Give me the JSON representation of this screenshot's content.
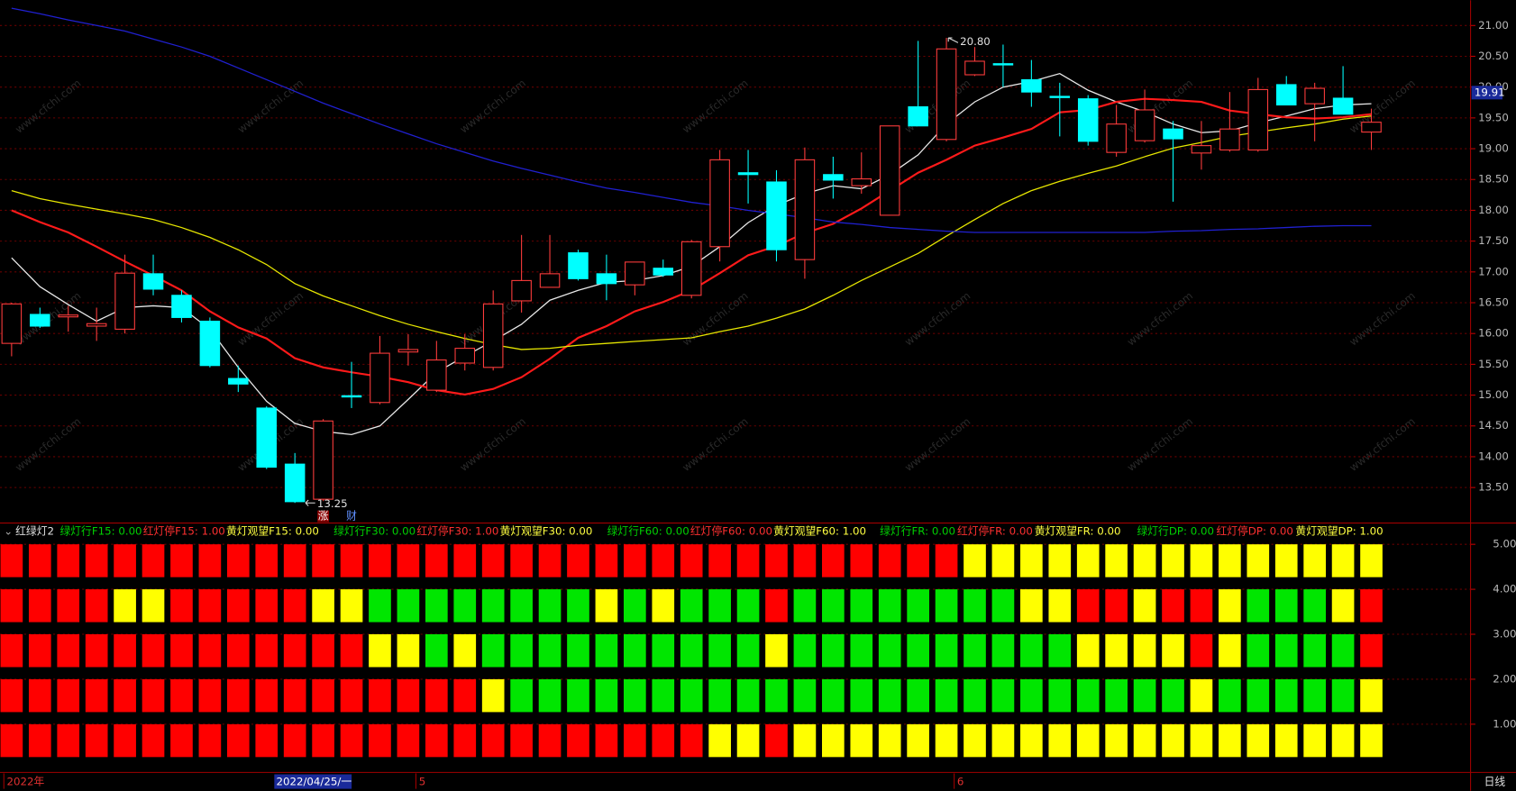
{
  "watermark": "www.cfchi.com",
  "period": "日线",
  "chart_data": [
    {
      "type": "candlestick",
      "categories": [
        "2022年",
        null,
        null,
        null,
        null,
        null,
        null,
        null,
        null,
        "2022/04/25/一",
        null,
        null,
        null,
        null,
        "5",
        null,
        null,
        null,
        null,
        null,
        null,
        null,
        null,
        null,
        null,
        null,
        null,
        null,
        null,
        null,
        null,
        null,
        null,
        "6",
        null,
        null,
        null,
        null,
        null,
        null,
        null,
        null,
        null,
        null,
        null,
        null,
        null,
        null,
        null
      ],
      "cursor_index": 9,
      "open": [
        15.84,
        16.31,
        16.27,
        16.12,
        16.07,
        16.97,
        16.62,
        16.2,
        15.27,
        14.79,
        13.88,
        13.31,
        14.99,
        14.88,
        15.7,
        15.08,
        15.52,
        15.45,
        16.53,
        16.75,
        17.31,
        16.97,
        16.79,
        17.06,
        16.62,
        17.41,
        18.61,
        18.46,
        17.2,
        18.58,
        18.4,
        17.92,
        19.68,
        19.15,
        20.2,
        20.38,
        20.12,
        19.85,
        19.81,
        18.94,
        19.13,
        19.32,
        18.93,
        18.98,
        18.98,
        20.04,
        19.73,
        19.82,
        19.27
      ],
      "high": [
        16.5,
        16.42,
        16.45,
        16.42,
        17.28,
        17.28,
        16.7,
        16.26,
        15.48,
        14.82,
        14.06,
        14.61,
        15.54,
        15.96,
        15.99,
        15.88,
        15.99,
        16.7,
        17.6,
        17.6,
        17.36,
        17.28,
        17.16,
        17.2,
        17.52,
        18.98,
        18.98,
        18.65,
        19.02,
        18.87,
        18.94,
        19.37,
        20.75,
        20.8,
        20.65,
        20.69,
        20.44,
        20.07,
        19.87,
        19.71,
        19.96,
        19.45,
        19.45,
        19.92,
        20.15,
        20.18,
        20.07,
        20.34,
        19.65
      ],
      "low": [
        15.63,
        16.09,
        16.03,
        15.88,
        16.0,
        16.62,
        16.18,
        15.45,
        15.05,
        13.8,
        13.25,
        13.28,
        14.79,
        14.85,
        15.48,
        15.05,
        15.4,
        15.4,
        16.34,
        16.75,
        16.86,
        16.54,
        16.62,
        16.92,
        16.57,
        17.17,
        18.11,
        17.17,
        16.89,
        18.19,
        18.27,
        17.92,
        19.37,
        19.12,
        20.18,
        20.0,
        19.68,
        19.2,
        19.05,
        18.87,
        19.1,
        18.14,
        18.66,
        18.95,
        18.95,
        19.71,
        19.12,
        19.56,
        18.98
      ],
      "close": [
        16.48,
        16.12,
        16.3,
        16.16,
        16.98,
        16.72,
        16.26,
        15.48,
        15.18,
        13.83,
        13.27,
        14.58,
        14.97,
        15.68,
        15.74,
        15.57,
        15.76,
        16.48,
        16.86,
        16.97,
        16.89,
        16.81,
        17.16,
        16.95,
        17.49,
        18.82,
        18.58,
        17.36,
        18.82,
        18.49,
        18.51,
        19.37,
        19.37,
        20.62,
        20.42,
        20.36,
        19.92,
        19.83,
        19.12,
        19.4,
        19.63,
        19.16,
        19.05,
        19.32,
        19.96,
        19.71,
        19.98,
        19.56,
        19.43
      ],
      "up_color": "#ff3c3c",
      "down_color": "#00ffff",
      "series": [
        {
          "color": "#e8e8e8",
          "values": [
            17.23,
            16.76,
            16.47,
            16.2,
            16.42,
            16.45,
            16.42,
            16.07,
            15.45,
            14.9,
            14.54,
            14.41,
            14.36,
            14.5,
            14.93,
            15.37,
            15.63,
            15.88,
            16.15,
            16.54,
            16.7,
            16.83,
            16.86,
            16.94,
            17.09,
            17.41,
            17.8,
            18.08,
            18.27,
            18.4,
            18.35,
            18.58,
            18.9,
            19.4,
            19.76,
            20.0,
            20.09,
            20.22,
            19.95,
            19.76,
            19.6,
            19.4,
            19.26,
            19.29,
            19.42,
            19.53,
            19.65,
            19.71,
            19.73
          ]
        },
        {
          "color": "#ff1a1a",
          "values": [
            18.0,
            17.81,
            17.64,
            17.41,
            17.17,
            16.94,
            16.7,
            16.36,
            16.1,
            15.92,
            15.6,
            15.45,
            15.37,
            15.3,
            15.21,
            15.08,
            15.01,
            15.1,
            15.29,
            15.59,
            15.93,
            16.12,
            16.36,
            16.51,
            16.7,
            16.98,
            17.27,
            17.42,
            17.63,
            17.78,
            18.03,
            18.32,
            18.61,
            18.82,
            19.05,
            19.18,
            19.32,
            19.59,
            19.63,
            19.76,
            19.81,
            19.79,
            19.76,
            19.62,
            19.56,
            19.51,
            19.49,
            19.51,
            19.56
          ]
        },
        {
          "color": "#e6e600",
          "values": [
            18.32,
            18.19,
            18.1,
            18.02,
            17.94,
            17.85,
            17.72,
            17.56,
            17.36,
            17.12,
            16.81,
            16.61,
            16.45,
            16.29,
            16.15,
            16.03,
            15.92,
            15.82,
            15.74,
            15.76,
            15.81,
            15.84,
            15.87,
            15.9,
            15.93,
            16.03,
            16.12,
            16.25,
            16.4,
            16.62,
            16.86,
            17.08,
            17.3,
            17.58,
            17.85,
            18.11,
            18.32,
            18.47,
            18.6,
            18.72,
            18.87,
            19.01,
            19.1,
            19.2,
            19.27,
            19.34,
            19.4,
            19.48,
            19.53
          ]
        },
        {
          "color": "#2020d0",
          "values": [
            21.28,
            21.19,
            21.09,
            21.0,
            20.91,
            20.78,
            20.65,
            20.5,
            20.31,
            20.12,
            19.93,
            19.74,
            19.57,
            19.4,
            19.24,
            19.08,
            18.94,
            18.8,
            18.68,
            18.57,
            18.46,
            18.36,
            18.29,
            18.21,
            18.13,
            18.07,
            18.0,
            17.94,
            17.88,
            17.81,
            17.77,
            17.72,
            17.69,
            17.66,
            17.64,
            17.64,
            17.64,
            17.64,
            17.64,
            17.64,
            17.64,
            17.66,
            17.67,
            17.69,
            17.7,
            17.72,
            17.74,
            17.75,
            17.75
          ]
        }
      ],
      "annotations": [
        "20.80",
        "13.25"
      ],
      "markers": [
        "涨",
        "财"
      ],
      "last_price": 19.91,
      "ylim": [
        12.97,
        21.41
      ],
      "yticks": [
        {
          "value": 13.5,
          "label": "13.50"
        },
        {
          "value": 14,
          "label": "14.00"
        },
        {
          "value": 14.5,
          "label": "14.50"
        },
        {
          "value": 15,
          "label": "15.00"
        },
        {
          "value": 15.5,
          "label": "15.50"
        },
        {
          "value": 16,
          "label": "16.00"
        },
        {
          "value": 16.5,
          "label": "16.50"
        },
        {
          "value": 17,
          "label": "17.00"
        },
        {
          "value": 17.5,
          "label": "17.50"
        },
        {
          "value": 18,
          "label": "18.00"
        },
        {
          "value": 18.5,
          "label": "18.50"
        },
        {
          "value": 19,
          "label": "19.00"
        },
        {
          "value": 19.5,
          "label": "19.50"
        },
        {
          "value": 20,
          "label": "20.00"
        },
        {
          "value": 20.5,
          "label": "20.50"
        },
        {
          "value": 21,
          "label": "21.00"
        }
      ],
      "grid": true
    },
    {
      "type": "signals",
      "title": "红绿灯2",
      "legend": [
        {
          "text": "绿灯行F15: 0.00",
          "color": "#00d000"
        },
        {
          "text": "红灯停F15: 1.00",
          "color": "#ff3030"
        },
        {
          "text": "黄灯观望F15: 0.00",
          "color": "#ffff40"
        },
        {
          "text": "绿灯行F30: 0.00",
          "color": "#00d000"
        },
        {
          "text": "红灯停F30: 1.00",
          "color": "#ff3030"
        },
        {
          "text": "黄灯观望F30: 0.00",
          "color": "#ffff40"
        },
        {
          "text": "绿灯行F60: 0.00",
          "color": "#00d000"
        },
        {
          "text": "红灯停F60: 0.00",
          "color": "#ff3030"
        },
        {
          "text": "黄灯观望F60: 1.00",
          "color": "#ffff40"
        },
        {
          "text": "绿灯行FR: 0.00",
          "color": "#00d000"
        },
        {
          "text": "红灯停FR: 0.00",
          "color": "#ff3030"
        },
        {
          "text": "黄灯观望FR: 0.00",
          "color": "#ffff40"
        },
        {
          "text": "绿灯行DP: 0.00",
          "color": "#00d000"
        },
        {
          "text": "红灯停DP: 0.00",
          "color": "#ff3030"
        },
        {
          "text": "黄灯观望DP: 1.00",
          "color": "#ffff40"
        }
      ],
      "rows": [
        {
          "level": 5,
          "colors": [
            "#ff0000",
            "#ff0000",
            "#ff0000",
            "#ff0000",
            "#ff0000",
            "#ff0000",
            "#ff0000",
            "#ff0000",
            "#ff0000",
            "#ff0000",
            "#ff0000",
            "#ff0000",
            "#ff0000",
            "#ff0000",
            "#ff0000",
            "#ff0000",
            "#ff0000",
            "#ff0000",
            "#ff0000",
            "#ff0000",
            "#ff0000",
            "#ff0000",
            "#ff0000",
            "#ff0000",
            "#ff0000",
            "#ff0000",
            "#ff0000",
            "#ff0000",
            "#ff0000",
            "#ff0000",
            "#ff0000",
            "#ff0000",
            "#ff0000",
            "#ff0000",
            "#ffff00",
            "#ffff00",
            "#ffff00",
            "#ffff00",
            "#ffff00",
            "#ffff00",
            "#ffff00",
            "#ffff00",
            "#ffff00",
            "#ffff00",
            "#ffff00",
            "#ffff00",
            "#ffff00",
            "#ffff00",
            "#ffff00"
          ]
        },
        {
          "level": 4,
          "colors": [
            "#ff0000",
            "#ff0000",
            "#ff0000",
            "#ff0000",
            "#ffff00",
            "#ffff00",
            "#ff0000",
            "#ff0000",
            "#ff0000",
            "#ff0000",
            "#ff0000",
            "#ffff00",
            "#ffff00",
            "#00e600",
            "#00e600",
            "#00e600",
            "#00e600",
            "#00e600",
            "#00e600",
            "#00e600",
            "#00e600",
            "#ffff00",
            "#00e600",
            "#ffff00",
            "#00e600",
            "#00e600",
            "#00e600",
            "#ff0000",
            "#00e600",
            "#00e600",
            "#00e600",
            "#00e600",
            "#00e600",
            "#00e600",
            "#00e600",
            "#00e600",
            "#ffff00",
            "#ffff00",
            "#ff0000",
            "#ff0000",
            "#ffff00",
            "#ff0000",
            "#ff0000",
            "#ffff00",
            "#00e600",
            "#00e600",
            "#00e600",
            "#ffff00",
            "#ff0000"
          ]
        },
        {
          "level": 3,
          "colors": [
            "#ff0000",
            "#ff0000",
            "#ff0000",
            "#ff0000",
            "#ff0000",
            "#ff0000",
            "#ff0000",
            "#ff0000",
            "#ff0000",
            "#ff0000",
            "#ff0000",
            "#ff0000",
            "#ff0000",
            "#ffff00",
            "#ffff00",
            "#00e600",
            "#ffff00",
            "#00e600",
            "#00e600",
            "#00e600",
            "#00e600",
            "#00e600",
            "#00e600",
            "#00e600",
            "#00e600",
            "#00e600",
            "#00e600",
            "#ffff00",
            "#00e600",
            "#00e600",
            "#00e600",
            "#00e600",
            "#00e600",
            "#00e600",
            "#00e600",
            "#00e600",
            "#00e600",
            "#00e600",
            "#ffff00",
            "#ffff00",
            "#ffff00",
            "#ffff00",
            "#ff0000",
            "#ffff00",
            "#00e600",
            "#00e600",
            "#00e600",
            "#00e600",
            "#ff0000"
          ]
        },
        {
          "level": 2,
          "colors": [
            "#ff0000",
            "#ff0000",
            "#ff0000",
            "#ff0000",
            "#ff0000",
            "#ff0000",
            "#ff0000",
            "#ff0000",
            "#ff0000",
            "#ff0000",
            "#ff0000",
            "#ff0000",
            "#ff0000",
            "#ff0000",
            "#ff0000",
            "#ff0000",
            "#ff0000",
            "#ffff00",
            "#00e600",
            "#00e600",
            "#00e600",
            "#00e600",
            "#00e600",
            "#00e600",
            "#00e600",
            "#00e600",
            "#00e600",
            "#00e600",
            "#00e600",
            "#00e600",
            "#00e600",
            "#00e600",
            "#00e600",
            "#00e600",
            "#00e600",
            "#00e600",
            "#00e600",
            "#00e600",
            "#00e600",
            "#00e600",
            "#00e600",
            "#00e600",
            "#ffff00",
            "#00e600",
            "#00e600",
            "#00e600",
            "#00e600",
            "#00e600",
            "#ffff00"
          ]
        },
        {
          "level": 1,
          "colors": [
            "#ff0000",
            "#ff0000",
            "#ff0000",
            "#ff0000",
            "#ff0000",
            "#ff0000",
            "#ff0000",
            "#ff0000",
            "#ff0000",
            "#ff0000",
            "#ff0000",
            "#ff0000",
            "#ff0000",
            "#ff0000",
            "#ff0000",
            "#ff0000",
            "#ff0000",
            "#ff0000",
            "#ff0000",
            "#ff0000",
            "#ff0000",
            "#ff0000",
            "#ff0000",
            "#ff0000",
            "#ff0000",
            "#ffff00",
            "#ffff00",
            "#ff0000",
            "#ffff00",
            "#ffff00",
            "#ffff00",
            "#ffff00",
            "#ffff00",
            "#ffff00",
            "#ffff00",
            "#ffff00",
            "#ffff00",
            "#ffff00",
            "#ffff00",
            "#ffff00",
            "#ffff00",
            "#ffff00",
            "#ffff00",
            "#ffff00",
            "#ffff00",
            "#ffff00",
            "#ffff00",
            "#ffff00",
            "#ffff00"
          ]
        }
      ],
      "ylim": [
        -0.05,
        5.15
      ],
      "yticks": [
        {
          "value": 1,
          "label": "1.00"
        },
        {
          "value": 2,
          "label": "2.00"
        },
        {
          "value": 3,
          "label": "3.00"
        },
        {
          "value": 4,
          "label": "4.00"
        },
        {
          "value": 5,
          "label": "5.00"
        }
      ],
      "grid": true
    }
  ]
}
